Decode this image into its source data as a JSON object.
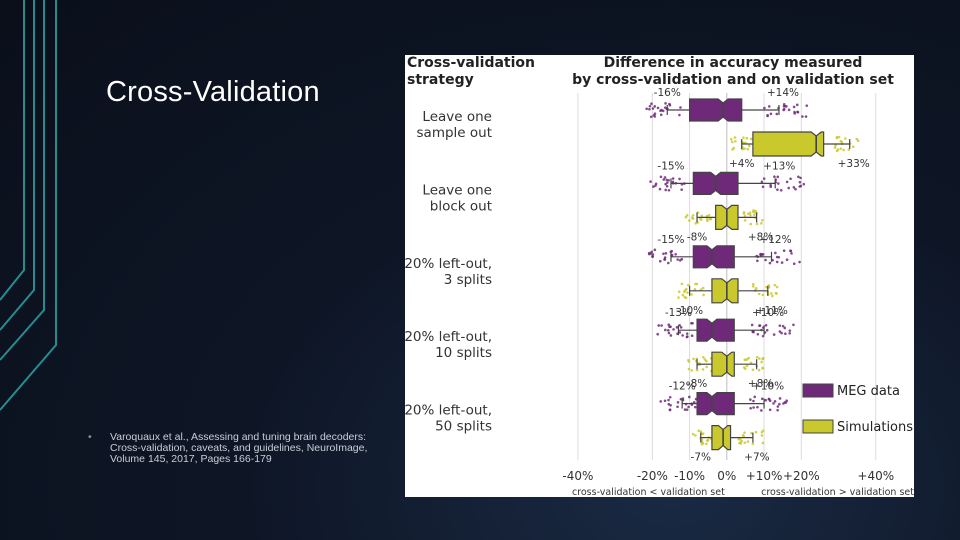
{
  "slide": {
    "title": "Cross-Validation",
    "reference": "Varoquaux et al., Assessing and tuning brain decoders: Cross-validation, caveats, and guidelines, NeuroImage, Volume 145, 2017, Pages 166-179",
    "bullet": "•"
  },
  "colors": {
    "meg": "#6e2a79",
    "sim": "#c9c92e",
    "background": "#0e1626"
  },
  "chart_data": {
    "type": "box",
    "title": "Difference in accuracy measured by cross-validation and on validation set",
    "title_lines": [
      "Difference in accuracy measured",
      "by cross-validation and on validation set"
    ],
    "row_header_lines": [
      "Cross-validation",
      "strategy"
    ],
    "x_ticks": [
      -40,
      -20,
      -10,
      0,
      10,
      20,
      40
    ],
    "x_tick_labels": [
      "-40%",
      "-20%",
      "-10%",
      "0%",
      "+10%",
      "+20%",
      "+40%"
    ],
    "xlim": [
      -44,
      50
    ],
    "xlabel_left": "cross-validation < validation set",
    "xlabel_right": "cross-validation > validation set",
    "grid": true,
    "legend_position": "bottom-right",
    "legend": [
      {
        "name": "MEG data",
        "key": "meg"
      },
      {
        "name": "Simulations",
        "key": "sim"
      }
    ],
    "groups": [
      {
        "label_lines": [
          "Leave one",
          "sample out"
        ],
        "boxes": [
          {
            "series": "meg",
            "whisker_low": -16,
            "q1": -10,
            "median": -1,
            "q3": 4,
            "whisker_high": 14,
            "low_label": "-16%",
            "high_label": "+14%"
          },
          {
            "series": "sim",
            "whisker_low": 4,
            "q1": 7,
            "median": 24,
            "q3": 26,
            "whisker_high": 33,
            "low_label": "+4%",
            "high_label": "+33%"
          }
        ]
      },
      {
        "label_lines": [
          "Leave one",
          "block out"
        ],
        "boxes": [
          {
            "series": "meg",
            "whisker_low": -15,
            "q1": -9,
            "median": -3,
            "q3": 3,
            "whisker_high": 13,
            "low_label": "-15%",
            "high_label": "+13%"
          },
          {
            "series": "sim",
            "whisker_low": -8,
            "q1": -3,
            "median": 0,
            "q3": 3,
            "whisker_high": 8,
            "low_label": "-8%",
            "high_label": "+8%"
          }
        ]
      },
      {
        "label_lines": [
          "20% left-out,",
          "3 splits"
        ],
        "boxes": [
          {
            "series": "meg",
            "whisker_low": -15,
            "q1": -9,
            "median": -4,
            "q3": 2,
            "whisker_high": 12,
            "low_label": "-15%",
            "high_label": "+12%"
          },
          {
            "series": "sim",
            "whisker_low": -10,
            "q1": -4,
            "median": 0,
            "q3": 3,
            "whisker_high": 11,
            "low_label": "-10%",
            "high_label": "+11%"
          }
        ]
      },
      {
        "label_lines": [
          "20% left-out,",
          "10 splits"
        ],
        "boxes": [
          {
            "series": "meg",
            "whisker_low": -13,
            "q1": -8,
            "median": -4,
            "q3": 2,
            "whisker_high": 10,
            "low_label": "-13%",
            "high_label": "+10%"
          },
          {
            "series": "sim",
            "whisker_low": -8,
            "q1": -4,
            "median": 0,
            "q3": 2,
            "whisker_high": 8,
            "low_label": "-8%",
            "high_label": "+8%"
          }
        ]
      },
      {
        "label_lines": [
          "20% left-out,",
          "50 splits"
        ],
        "boxes": [
          {
            "series": "meg",
            "whisker_low": -12,
            "q1": -8,
            "median": -4,
            "q3": 2,
            "whisker_high": 10,
            "low_label": "-12%",
            "high_label": "+10%"
          },
          {
            "series": "sim",
            "whisker_low": -7,
            "q1": -4,
            "median": -1,
            "q3": 1,
            "whisker_high": 7,
            "low_label": "-7%",
            "high_label": "+7%"
          }
        ]
      }
    ]
  }
}
